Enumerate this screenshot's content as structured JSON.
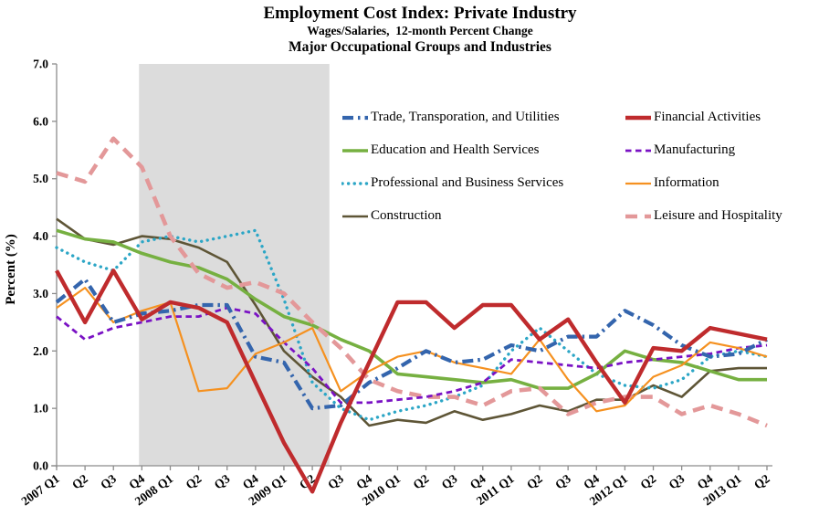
{
  "title": "Employment Cost Index: Private Industry",
  "subtitle1": "Wages/Salaries,  12-month Percent Change",
  "subtitle2": "Major Occupational Groups and Industries",
  "y_axis": {
    "label": "Percent (%)",
    "min": 0.0,
    "max": 7.0,
    "tick_step": 1.0,
    "tick_labels": [
      "0.0",
      "1.0",
      "2.0",
      "3.0",
      "4.0",
      "5.0",
      "6.0",
      "7.0"
    ]
  },
  "x_axis": {
    "tick_labels": [
      "2007 Q1",
      "Q2",
      "Q3",
      "Q4",
      "2008 Q1",
      "Q2",
      "Q3",
      "Q4",
      "2009 Q1",
      "Q2",
      "Q3",
      "Q4",
      "2010 Q1",
      "Q2",
      "Q3",
      "Q4",
      "2011 Q1",
      "Q2",
      "Q3",
      "Q4",
      "2012 Q1",
      "Q2",
      "Q3",
      "Q4",
      "2013 Q1",
      "Q2"
    ]
  },
  "recession_band": {
    "start_index": 2.9,
    "end_index": 9.6,
    "color": "#dcdcdc",
    "meaning": "recession 2007 Q4 - 2009 Q2"
  },
  "chart_data": {
    "type": "line",
    "title": "Employment Cost Index: Private Industry",
    "xlabel": "",
    "ylabel": "Percent (%)",
    "ylim": [
      0,
      7
    ],
    "grid": false,
    "legend_position": "inside-top",
    "categories": [
      "2007 Q1",
      "2007 Q2",
      "2007 Q3",
      "2007 Q4",
      "2008 Q1",
      "2008 Q2",
      "2008 Q3",
      "2008 Q4",
      "2009 Q1",
      "2009 Q2",
      "2009 Q3",
      "2009 Q4",
      "2010 Q1",
      "2010 Q2",
      "2010 Q3",
      "2010 Q4",
      "2011 Q1",
      "2011 Q2",
      "2011 Q3",
      "2011 Q4",
      "2012 Q1",
      "2012 Q2",
      "2012 Q3",
      "2012 Q4",
      "2013 Q1",
      "2013 Q2"
    ],
    "series": [
      {
        "name": "Trade, Transporation, and Utilities",
        "color": "#3465ad",
        "line_style": "dash-dot",
        "width": 4.2,
        "legend_column": 1,
        "values": [
          2.85,
          3.25,
          2.5,
          2.65,
          2.7,
          2.8,
          2.8,
          1.9,
          1.8,
          1.0,
          1.05,
          1.45,
          1.7,
          2.0,
          1.8,
          1.85,
          2.1,
          2.0,
          2.25,
          2.25,
          2.7,
          2.45,
          2.1,
          1.9,
          1.95,
          2.2
        ]
      },
      {
        "name": "Education and Health Services",
        "color": "#76b041",
        "line_style": "solid",
        "width": 3.6,
        "legend_column": 1,
        "values": [
          4.1,
          3.95,
          3.9,
          3.7,
          3.55,
          3.45,
          3.25,
          2.9,
          2.6,
          2.45,
          2.2,
          2.0,
          1.6,
          1.55,
          1.5,
          1.45,
          1.5,
          1.35,
          1.35,
          1.6,
          2.0,
          1.85,
          1.8,
          1.65,
          1.5,
          1.5
        ]
      },
      {
        "name": "Professional and Business Services",
        "color": "#2ca6c6",
        "line_style": "dot",
        "width": 3.4,
        "legend_column": 1,
        "values": [
          3.8,
          3.55,
          3.4,
          3.9,
          4.0,
          3.9,
          4.0,
          4.1,
          2.9,
          1.45,
          1.0,
          0.8,
          0.95,
          1.05,
          1.2,
          1.4,
          2.0,
          2.4,
          2.0,
          1.6,
          1.4,
          1.35,
          1.5,
          1.9,
          2.0,
          1.9
        ]
      },
      {
        "name": "Construction",
        "color": "#5e5536",
        "line_style": "solid",
        "width": 2.6,
        "legend_column": 1,
        "values": [
          4.3,
          3.95,
          3.85,
          4.0,
          3.95,
          3.8,
          3.55,
          2.8,
          2.0,
          1.55,
          1.2,
          0.7,
          0.8,
          0.75,
          0.95,
          0.8,
          0.9,
          1.05,
          0.95,
          1.15,
          1.15,
          1.4,
          1.2,
          1.65,
          1.7,
          1.7
        ]
      },
      {
        "name": "Financial Activities",
        "color": "#bf2b2d",
        "line_style": "solid",
        "width": 4.4,
        "legend_column": 2,
        "values": [
          3.4,
          2.5,
          3.4,
          2.55,
          2.85,
          2.75,
          2.5,
          1.45,
          0.4,
          -0.45,
          0.75,
          1.8,
          2.85,
          2.85,
          2.4,
          2.8,
          2.8,
          2.2,
          2.55,
          1.8,
          1.1,
          2.05,
          2.0,
          2.4,
          2.3,
          2.2
        ]
      },
      {
        "name": "Manufacturing",
        "color": "#7a12c4",
        "line_style": "dash",
        "width": 2.8,
        "legend_column": 2,
        "values": [
          2.6,
          2.2,
          2.4,
          2.5,
          2.6,
          2.6,
          2.75,
          2.65,
          2.15,
          1.7,
          1.1,
          1.1,
          1.15,
          1.2,
          1.3,
          1.45,
          1.85,
          1.8,
          1.75,
          1.7,
          1.8,
          1.85,
          1.9,
          1.95,
          2.05,
          2.1
        ]
      },
      {
        "name": "Information",
        "color": "#f59120",
        "line_style": "solid",
        "width": 2.2,
        "legend_column": 2,
        "values": [
          2.75,
          3.1,
          2.5,
          2.7,
          2.85,
          1.3,
          1.35,
          1.95,
          2.15,
          2.4,
          1.3,
          1.65,
          1.9,
          2.0,
          1.8,
          1.7,
          1.6,
          2.2,
          1.5,
          0.95,
          1.05,
          1.55,
          1.75,
          2.15,
          2.05,
          1.9
        ]
      },
      {
        "name": "Leisure and Hospitality",
        "color": "#e39899",
        "line_style": "long-dash",
        "width": 4.6,
        "legend_column": 2,
        "values": [
          5.1,
          4.95,
          5.7,
          5.2,
          4.0,
          3.35,
          3.1,
          3.2,
          3.0,
          2.5,
          2.05,
          1.5,
          1.3,
          1.2,
          1.2,
          1.05,
          1.3,
          1.35,
          0.9,
          1.1,
          1.2,
          1.2,
          0.9,
          1.05,
          0.9,
          0.7
        ]
      }
    ]
  }
}
